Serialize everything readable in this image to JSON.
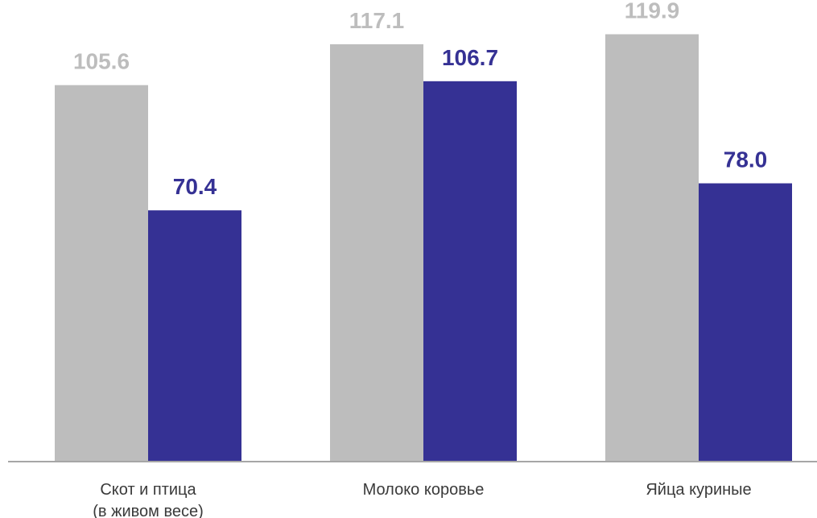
{
  "chart_data": {
    "type": "bar",
    "categories": [
      [
        "Скот и птица",
        "(в живом весе)"
      ],
      [
        "Молоко коровье"
      ],
      [
        "Яйца куриные"
      ]
    ],
    "series": [
      {
        "values": [
          105.6,
          117.1,
          119.9
        ],
        "labels": [
          "105.6",
          "117.1",
          "119.9"
        ],
        "color": "#bdbdbd"
      },
      {
        "values": [
          70.4,
          106.7,
          78.0
        ],
        "labels": [
          "70.4",
          "106.7",
          "78.0"
        ],
        "color": "#353194"
      }
    ],
    "ylim": [
      0,
      125
    ],
    "grid": false,
    "axis_color": "#a6a6a6",
    "category_label_color": "#3a3a3a"
  }
}
